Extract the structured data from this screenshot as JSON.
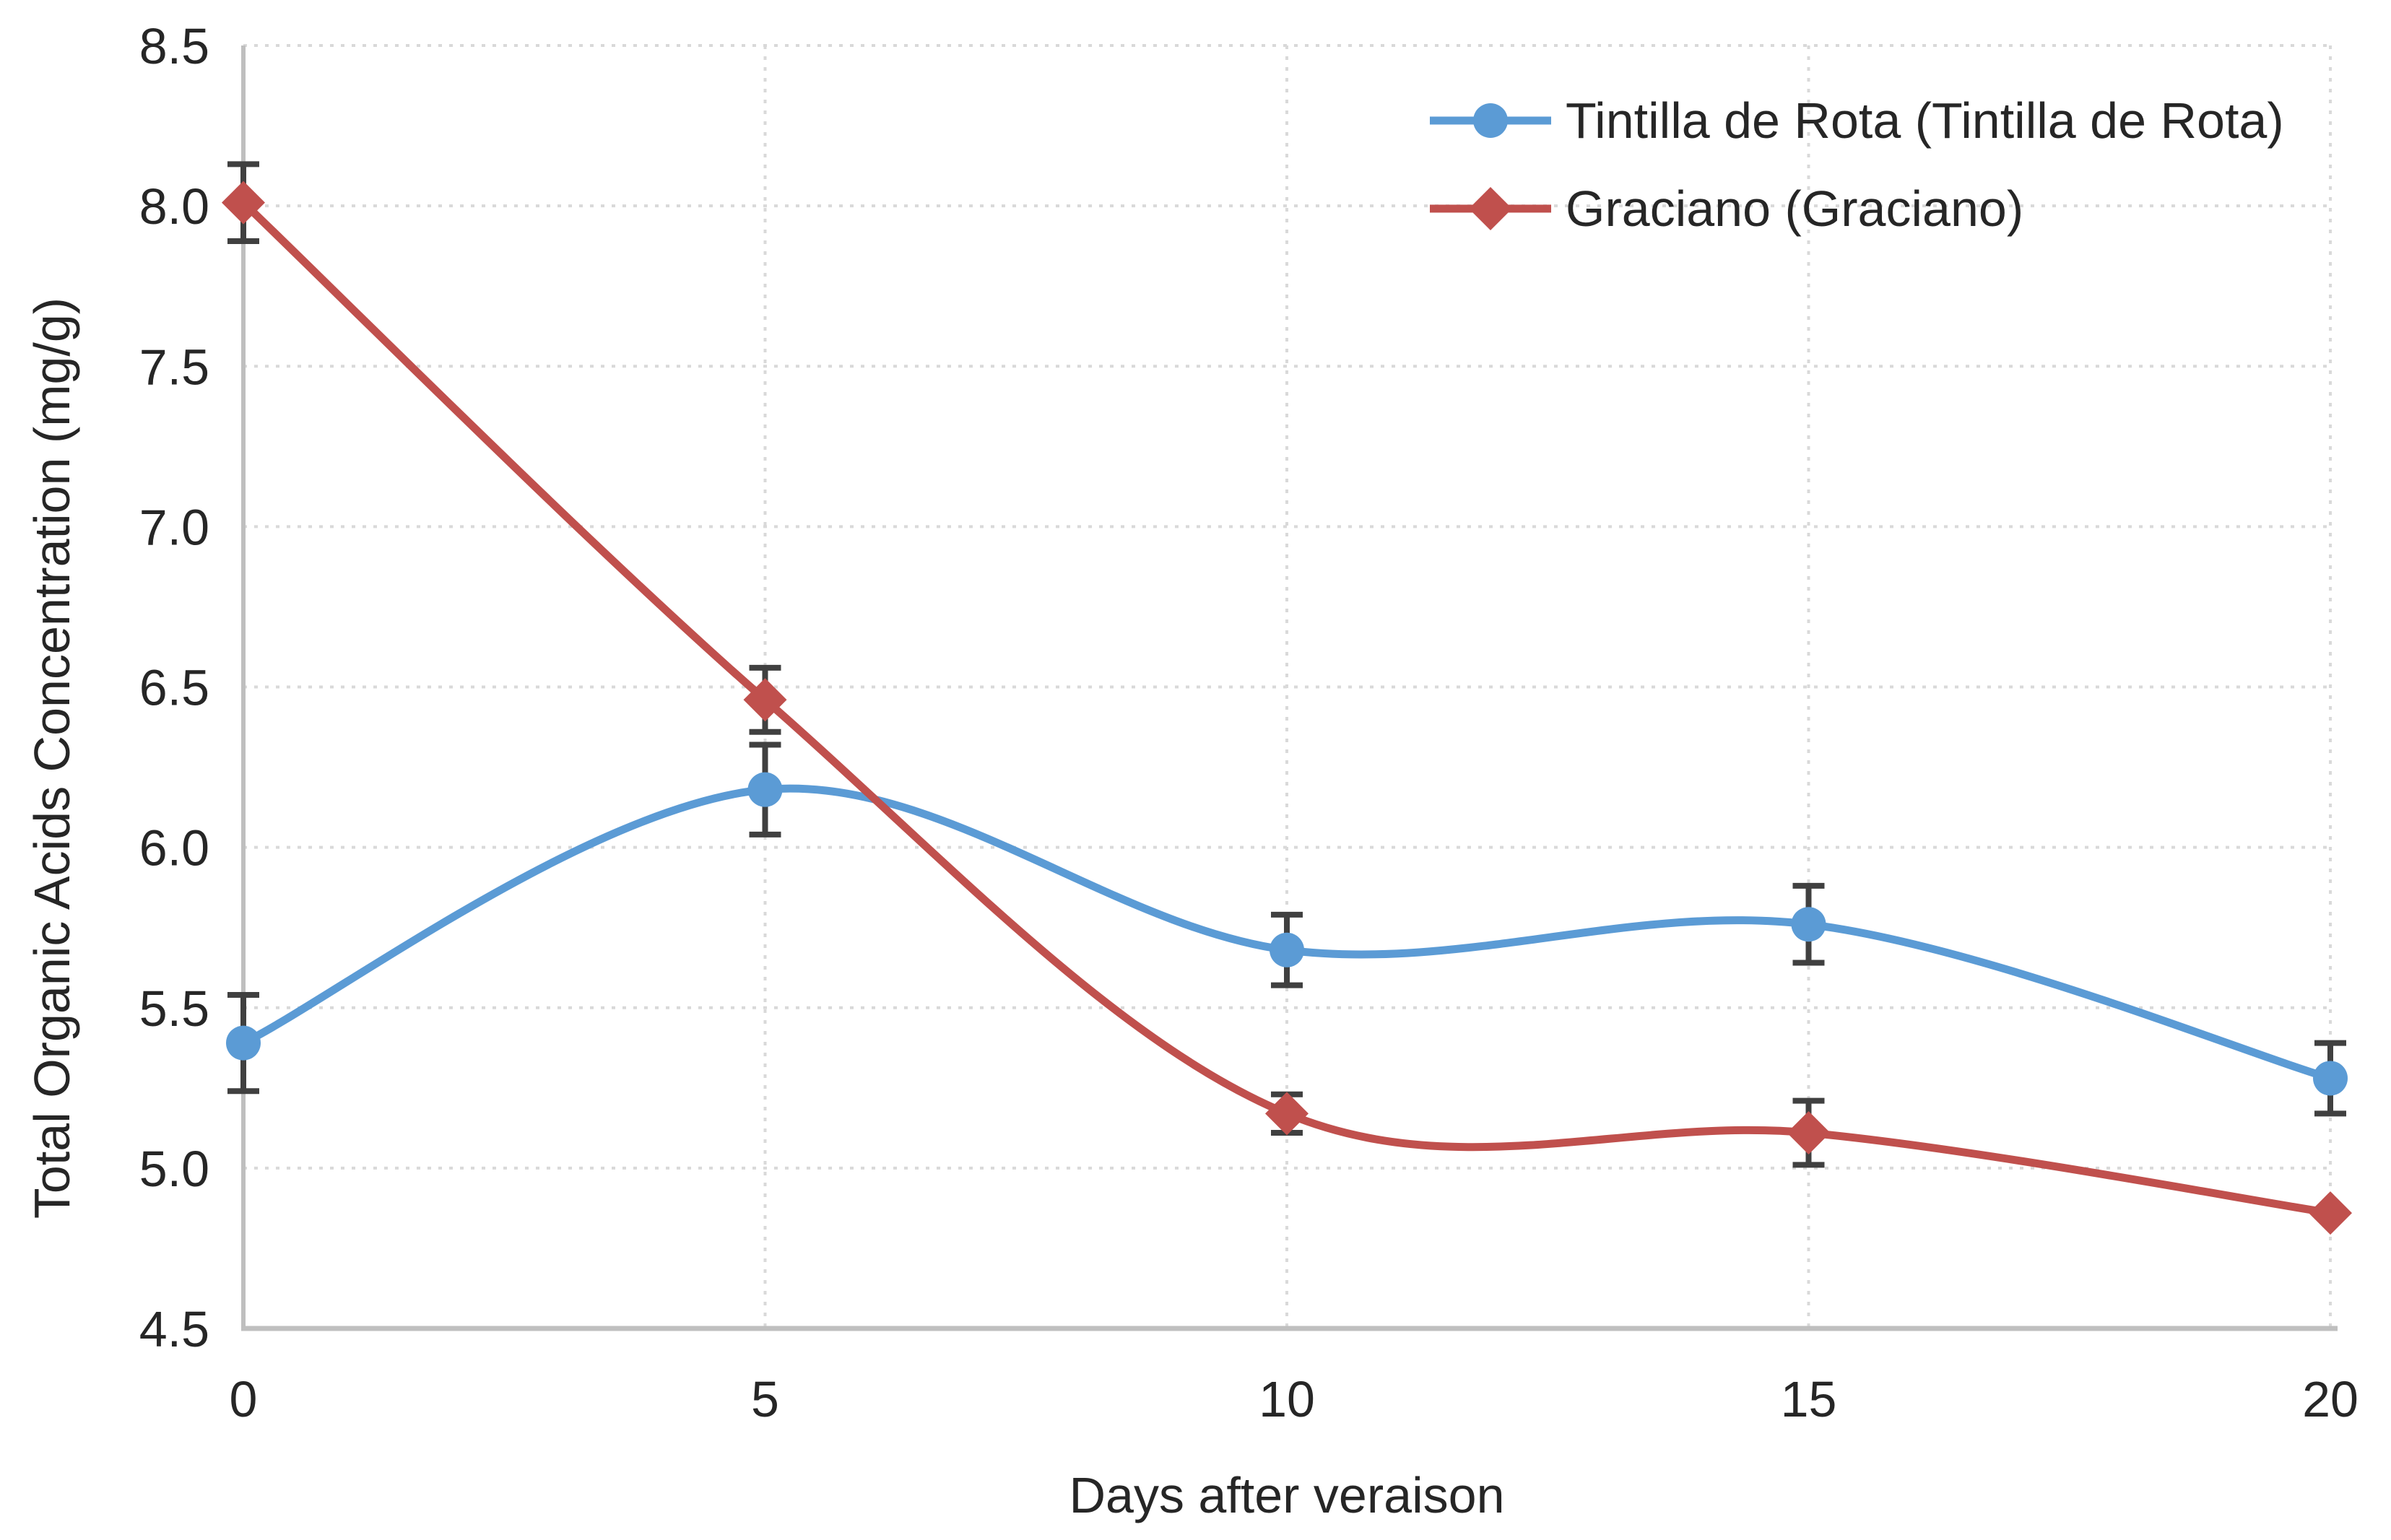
{
  "chart_data": {
    "type": "line",
    "title": "",
    "xlabel": "Days after veraison",
    "ylabel": "Total Organic Acids Concentration (mg/g)",
    "x": [
      0,
      5,
      10,
      15,
      20
    ],
    "xtick_labels": [
      "0",
      "5",
      "10",
      "15",
      "20"
    ],
    "ytick_labels": [
      "4.5",
      "5.0",
      "5.5",
      "6.0",
      "6.5",
      "7.0",
      "7.5",
      "8.0",
      "8.5"
    ],
    "xlim": [
      0,
      20
    ],
    "ylim": [
      4.5,
      8.5
    ],
    "ytick_step": 0.5,
    "grid": "dotted horizontal and vertical gridlines",
    "line_style": "smooth",
    "legend_position": "top-right inside plot",
    "series": [
      {
        "name": "Tintilla de Rota (Tintilla de Rota)",
        "color": "#5B9BD5",
        "marker": "circle",
        "values": [
          5.39,
          6.18,
          5.68,
          5.76,
          5.28
        ],
        "error_bars": [
          0.15,
          0.14,
          0.11,
          0.12,
          0.11
        ]
      },
      {
        "name": "Graciano (Graciano)",
        "color": "#C0504D",
        "marker": "diamond",
        "values": [
          8.01,
          6.46,
          5.17,
          5.11,
          4.86
        ],
        "error_bars": [
          0.12,
          0.1,
          0.06,
          0.1,
          0
        ]
      }
    ],
    "colors": {
      "grid": "#D9D9D9",
      "axis_line": "#BFBFBF",
      "error_bar": "#404040",
      "text": "#262626",
      "background": "#FFFFFF"
    }
  }
}
